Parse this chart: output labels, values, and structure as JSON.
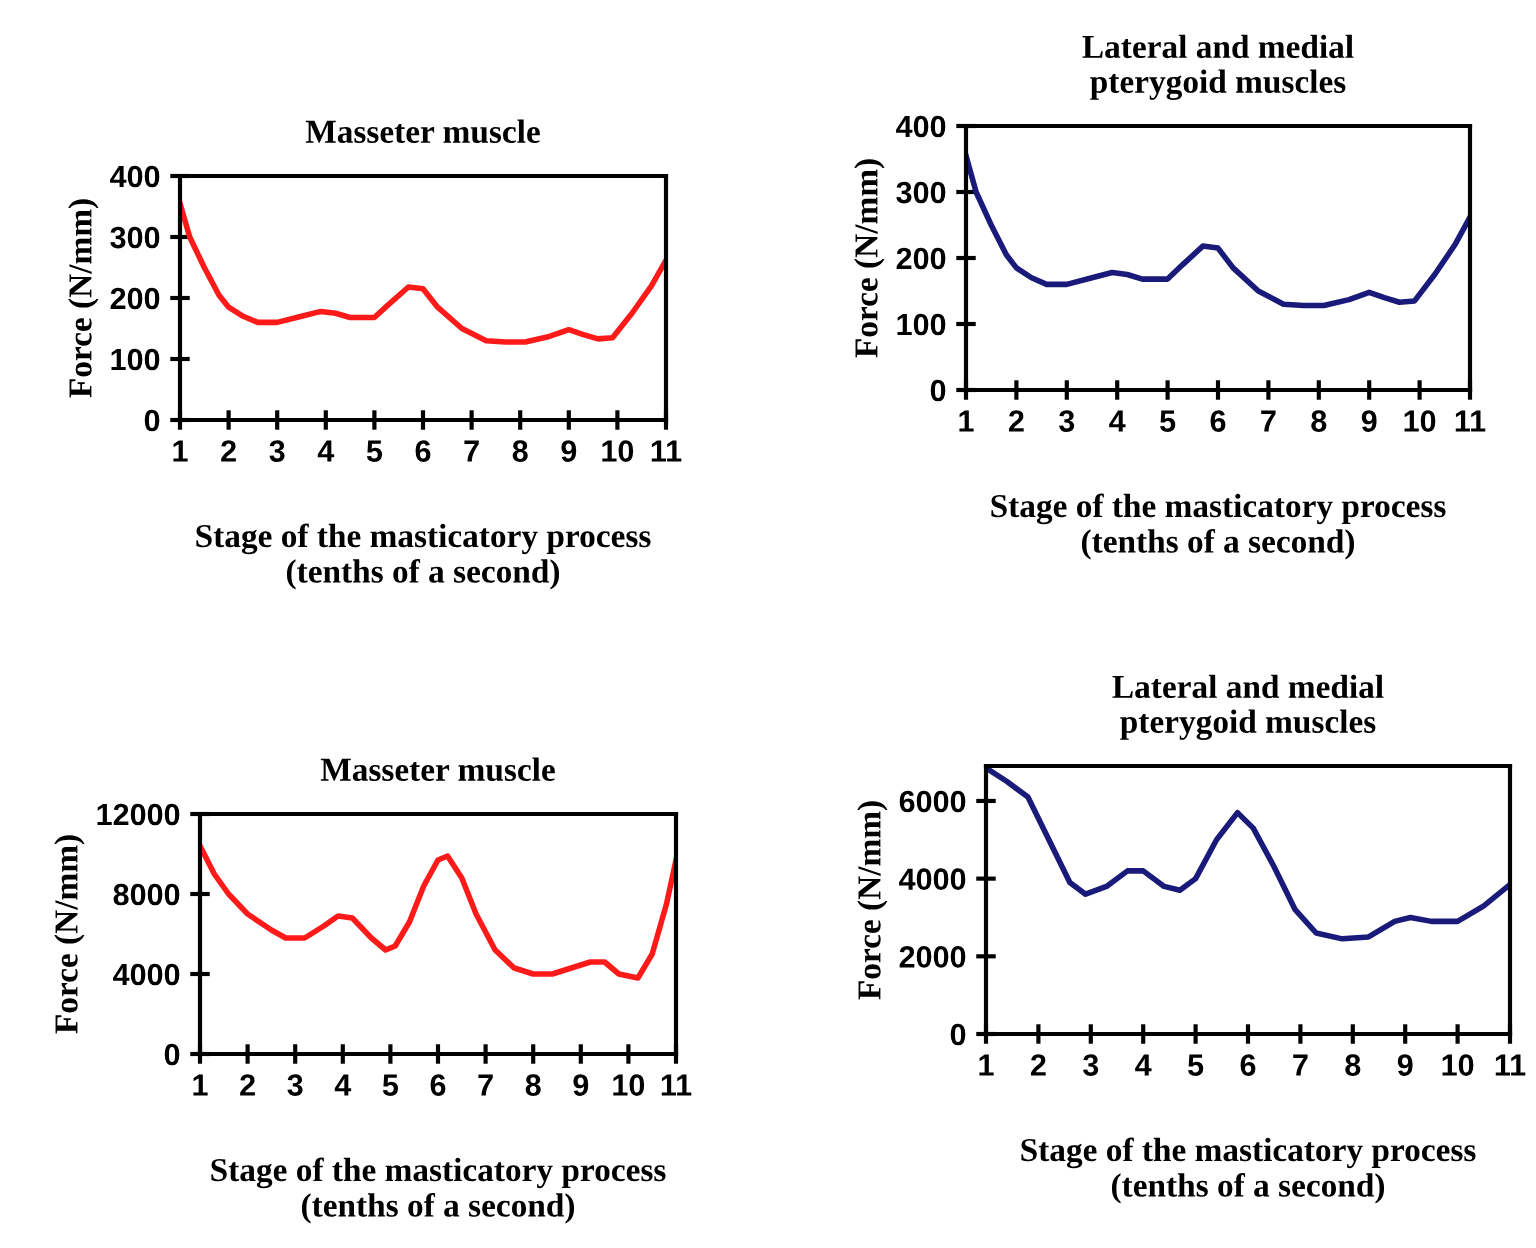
{
  "chart_data": [
    {
      "type": "line",
      "title": "Masseter muscle",
      "xlabel": "Stage of the masticatory process\n(tenths of a second)",
      "ylabel": "Force (N/mm)",
      "xlim": [
        1,
        11
      ],
      "xticks": [
        1,
        2,
        3,
        4,
        5,
        6,
        7,
        8,
        9,
        10,
        11
      ],
      "ylim": [
        0,
        400
      ],
      "yticks": [
        0,
        100,
        200,
        300,
        400
      ],
      "marker": "none",
      "line_style": "solid",
      "series": [
        {
          "color": "#ff1a1a",
          "x": [
            1,
            1.2,
            1.5,
            1.8,
            2,
            2.3,
            2.6,
            3,
            3.5,
            3.9,
            4.2,
            4.5,
            5,
            5.3,
            5.7,
            6,
            6.3,
            6.8,
            7.3,
            7.7,
            8.1,
            8.6,
            9,
            9.3,
            9.6,
            9.9,
            10.3,
            10.7,
            11
          ],
          "values": [
            355,
            300,
            250,
            205,
            185,
            170,
            160,
            160,
            170,
            178,
            175,
            168,
            168,
            190,
            218,
            215,
            185,
            150,
            130,
            128,
            128,
            137,
            148,
            140,
            133,
            135,
            175,
            220,
            262
          ]
        }
      ]
    },
    {
      "type": "line",
      "title": "Lateral and medial\npterygoid muscles",
      "xlabel": "Stage of the masticatory process\n(tenths of a second)",
      "ylabel": "Force (N/mm)",
      "xlim": [
        1,
        11
      ],
      "xticks": [
        1,
        2,
        3,
        4,
        5,
        6,
        7,
        8,
        9,
        10,
        11
      ],
      "ylim": [
        0,
        400
      ],
      "yticks": [
        0,
        100,
        200,
        300,
        400
      ],
      "marker": "none",
      "line_style": "solid",
      "series": [
        {
          "color": "#1a1a7a",
          "x": [
            1,
            1.2,
            1.5,
            1.8,
            2,
            2.3,
            2.6,
            3,
            3.5,
            3.9,
            4.2,
            4.5,
            5,
            5.3,
            5.7,
            6,
            6.3,
            6.8,
            7.3,
            7.7,
            8.1,
            8.6,
            9,
            9.3,
            9.6,
            9.9,
            10.3,
            10.7,
            11
          ],
          "values": [
            355,
            300,
            250,
            205,
            185,
            170,
            160,
            160,
            170,
            178,
            175,
            168,
            168,
            190,
            218,
            215,
            185,
            150,
            130,
            128,
            128,
            137,
            148,
            140,
            133,
            135,
            175,
            220,
            262
          ]
        }
      ]
    },
    {
      "type": "line",
      "title": "Masseter muscle",
      "xlabel": "Stage of the masticatory process\n(tenths of a second)",
      "ylabel": "Force (N/mm)",
      "xlim": [
        1,
        11
      ],
      "xticks": [
        1,
        2,
        3,
        4,
        5,
        6,
        7,
        8,
        9,
        10,
        11
      ],
      "ylim": [
        0,
        12000
      ],
      "yticks": [
        0,
        4000,
        8000,
        12000
      ],
      "marker": "none",
      "line_style": "solid",
      "series": [
        {
          "color": "#ff1a1a",
          "x": [
            1,
            1.3,
            1.6,
            2,
            2.5,
            2.8,
            3.2,
            3.6,
            3.9,
            4.2,
            4.6,
            4.9,
            5.1,
            5.4,
            5.7,
            6,
            6.2,
            6.5,
            6.8,
            7.2,
            7.6,
            8,
            8.4,
            8.8,
            9.2,
            9.5,
            9.8,
            10.2,
            10.5,
            10.8,
            11
          ],
          "values": [
            10400,
            9000,
            8000,
            7000,
            6200,
            5800,
            5800,
            6400,
            6900,
            6800,
            5800,
            5200,
            5400,
            6600,
            8400,
            9700,
            9900,
            8800,
            7000,
            5200,
            4300,
            4000,
            4000,
            4300,
            4600,
            4600,
            4000,
            3800,
            5000,
            7500,
            9700
          ]
        }
      ]
    },
    {
      "type": "line",
      "title": "Lateral and medial\npterygoid muscles",
      "xlabel": "Stage of the masticatory process\n(tenths of a second)",
      "ylabel": "Force (N/mm)",
      "xlim": [
        1,
        11
      ],
      "xticks": [
        1,
        2,
        3,
        4,
        5,
        6,
        7,
        8,
        9,
        10,
        11
      ],
      "ylim": [
        0,
        6900
      ],
      "yticks": [
        0,
        2000,
        4000,
        6000
      ],
      "marker": "none",
      "line_style": "solid",
      "series": [
        {
          "color": "#1a1a7a",
          "x": [
            1,
            1.4,
            1.8,
            2.2,
            2.6,
            2.9,
            3.3,
            3.7,
            4,
            4.4,
            4.7,
            5,
            5.4,
            5.8,
            6.1,
            6.5,
            6.9,
            7.3,
            7.8,
            8.3,
            8.8,
            9.1,
            9.5,
            10,
            10.5,
            11
          ],
          "values": [
            6850,
            6500,
            6100,
            5000,
            3900,
            3600,
            3800,
            4200,
            4200,
            3800,
            3700,
            4000,
            5000,
            5700,
            5300,
            4300,
            3200,
            2600,
            2450,
            2500,
            2900,
            3000,
            2900,
            2900,
            3300,
            3850
          ]
        }
      ]
    }
  ]
}
